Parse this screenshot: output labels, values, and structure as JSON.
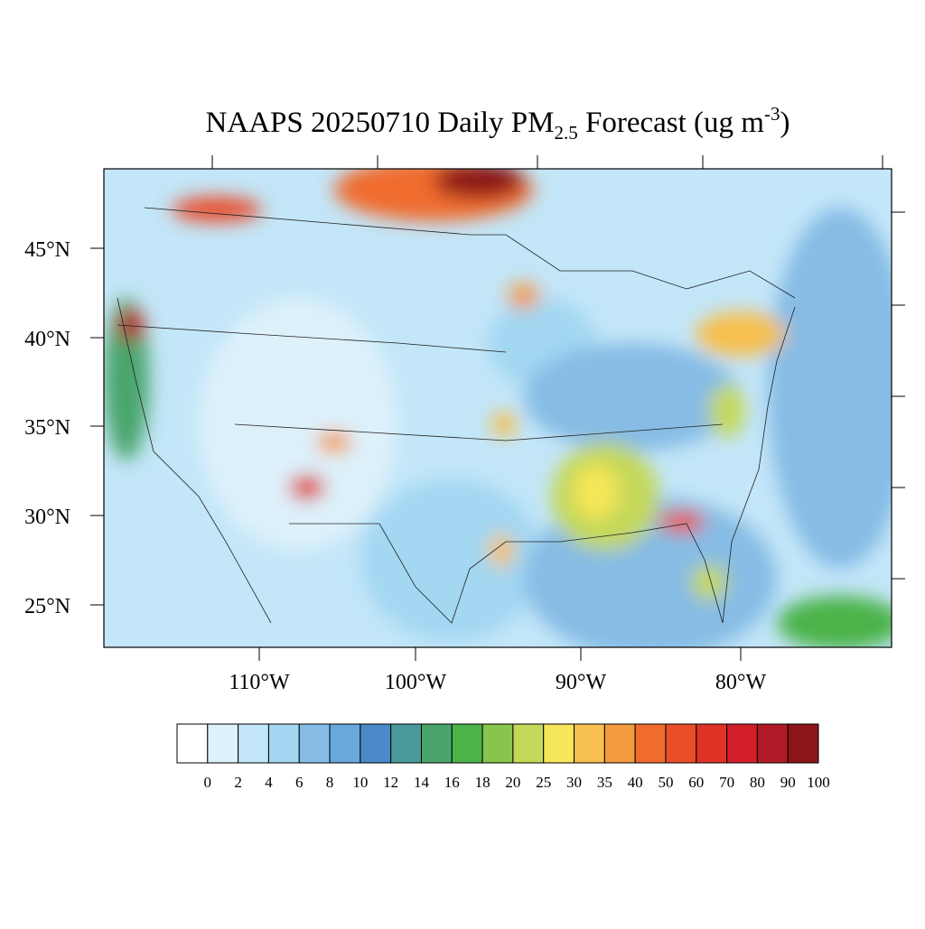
{
  "title": {
    "main": "NAAPS 20250710 Daily PM",
    "sub": "2.5",
    "mid": " Forecast (ug m",
    "sup": "-3",
    "end": ")"
  },
  "map": {
    "lat_labels": [
      "45°N",
      "40°N",
      "35°N",
      "30°N",
      "25°N"
    ],
    "lon_labels": [
      "110°W",
      "100°W",
      "90°W",
      "80°W"
    ]
  },
  "colorbar": {
    "colors": [
      "#ffffff",
      "#ddf1fb",
      "#c3e6f8",
      "#a3d7f2",
      "#86bce5",
      "#69a8dc",
      "#4a8ac8",
      "#4a9a9c",
      "#4aa56c",
      "#4cb34a",
      "#88c54e",
      "#c4d85a",
      "#f6e659",
      "#f7bf4e",
      "#f49a3e",
      "#f06c2e",
      "#e94e2a",
      "#de3326",
      "#d21f2a",
      "#b01a27",
      "#8c1519"
    ],
    "labels": [
      "0",
      "2",
      "4",
      "6",
      "8",
      "10",
      "12",
      "14",
      "16",
      "18",
      "20",
      "25",
      "30",
      "35",
      "40",
      "50",
      "60",
      "70",
      "80",
      "90",
      "100"
    ]
  }
}
